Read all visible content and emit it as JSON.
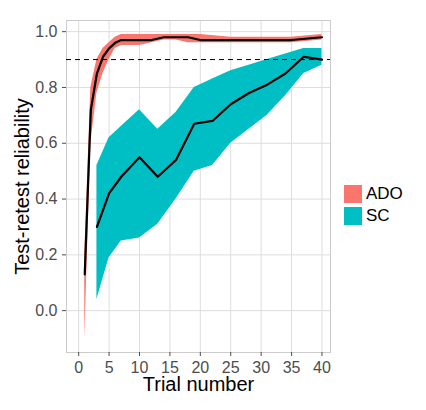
{
  "chart_data": {
    "type": "line",
    "x_label": "Trial number",
    "y_label": "Test-retest reliability",
    "xlim": [
      -2,
      41.4
    ],
    "xticks": [
      0,
      5,
      10,
      15,
      20,
      25,
      30,
      35,
      40
    ],
    "ylim": [
      -0.15,
      1.04
    ],
    "yticks": [
      {
        "value": 0,
        "label": "0.0"
      },
      0.2,
      0.4,
      0.6,
      0.8,
      {
        "value": 1,
        "label": "1.0"
      }
    ],
    "grid": true,
    "legend": "right",
    "hline": 0.9,
    "series": [
      {
        "name": "ADO",
        "color": "#F8766D",
        "x": [
          1,
          2,
          3,
          4,
          5,
          6,
          7,
          8,
          10,
          12,
          14,
          16,
          18,
          20,
          25,
          30,
          35,
          40
        ],
        "values": [
          0.13,
          0.72,
          0.85,
          0.91,
          0.94,
          0.96,
          0.97,
          0.97,
          0.97,
          0.97,
          0.98,
          0.98,
          0.98,
          0.97,
          0.97,
          0.97,
          0.97,
          0.98
        ],
        "lower": [
          -0.1,
          0.6,
          0.78,
          0.85,
          0.9,
          0.94,
          0.95,
          0.95,
          0.95,
          0.96,
          0.97,
          0.97,
          0.96,
          0.96,
          0.96,
          0.96,
          0.96,
          0.97
        ],
        "upper": [
          0.2,
          0.8,
          0.9,
          0.94,
          0.96,
          0.98,
          0.99,
          0.99,
          0.99,
          0.99,
          0.99,
          0.99,
          0.99,
          0.99,
          0.98,
          0.98,
          0.98,
          0.99
        ]
      },
      {
        "name": "SC",
        "color": "#00BFC4",
        "x": [
          3,
          5,
          7,
          10,
          13,
          16,
          19,
          22,
          25,
          28,
          31,
          34,
          37,
          40
        ],
        "values": [
          0.3,
          0.42,
          0.48,
          0.55,
          0.48,
          0.54,
          0.67,
          0.68,
          0.74,
          0.78,
          0.81,
          0.85,
          0.91,
          0.9
        ],
        "lower": [
          0.04,
          0.19,
          0.25,
          0.26,
          0.31,
          0.4,
          0.5,
          0.52,
          0.6,
          0.65,
          0.7,
          0.77,
          0.85,
          0.88
        ],
        "upper": [
          0.52,
          0.62,
          0.66,
          0.72,
          0.65,
          0.71,
          0.8,
          0.83,
          0.86,
          0.88,
          0.9,
          0.92,
          0.94,
          0.94
        ]
      }
    ]
  }
}
